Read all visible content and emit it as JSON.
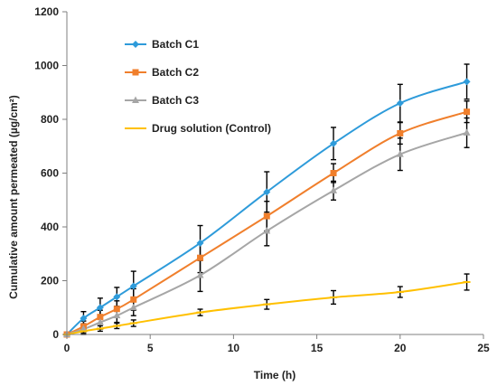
{
  "chart_data": {
    "type": "line",
    "title": "",
    "xlabel": "Time (h)",
    "ylabel": "Cumulative amount permeated (µg/cm²)",
    "xlim": [
      0,
      25
    ],
    "ylim": [
      0,
      1200
    ],
    "xticks": [
      0,
      5,
      10,
      15,
      20,
      25
    ],
    "yticks": [
      0,
      200,
      400,
      600,
      800,
      1000,
      1200
    ],
    "grid": false,
    "legend_position": "top-left",
    "series": [
      {
        "name": "Batch C1",
        "color": "#2E9BDA",
        "marker": "diamond",
        "x": [
          0,
          1,
          2,
          3,
          4,
          8,
          12,
          16,
          20,
          24
        ],
        "y": [
          0,
          60,
          100,
          140,
          180,
          340,
          530,
          710,
          860,
          940
        ],
        "error": [
          0,
          25,
          35,
          35,
          55,
          65,
          75,
          60,
          70,
          65
        ]
      },
      {
        "name": "Batch C2",
        "color": "#F07F2C",
        "marker": "square",
        "x": [
          0,
          1,
          2,
          3,
          4,
          8,
          12,
          16,
          20,
          24
        ],
        "y": [
          0,
          30,
          65,
          95,
          130,
          285,
          440,
          600,
          748,
          828
        ],
        "error": [
          0,
          20,
          25,
          30,
          40,
          55,
          55,
          35,
          40,
          40
        ]
      },
      {
        "name": "Batch C3",
        "color": "#A6A6A6",
        "marker": "triangle",
        "x": [
          0,
          1,
          2,
          3,
          4,
          8,
          12,
          16,
          20,
          24
        ],
        "y": [
          0,
          20,
          45,
          70,
          100,
          220,
          385,
          535,
          670,
          750
        ],
        "error": [
          0,
          20,
          25,
          25,
          30,
          60,
          55,
          35,
          60,
          55
        ]
      },
      {
        "name": "Drug solution (Control)",
        "color": "#FFC000",
        "marker": "dash",
        "x": [
          0,
          1,
          2,
          3,
          4,
          8,
          12,
          16,
          20,
          24
        ],
        "y": [
          0,
          12,
          22,
          32,
          42,
          82,
          112,
          138,
          158,
          195
        ],
        "error": [
          0,
          8,
          10,
          10,
          12,
          12,
          18,
          25,
          20,
          30
        ]
      }
    ]
  }
}
